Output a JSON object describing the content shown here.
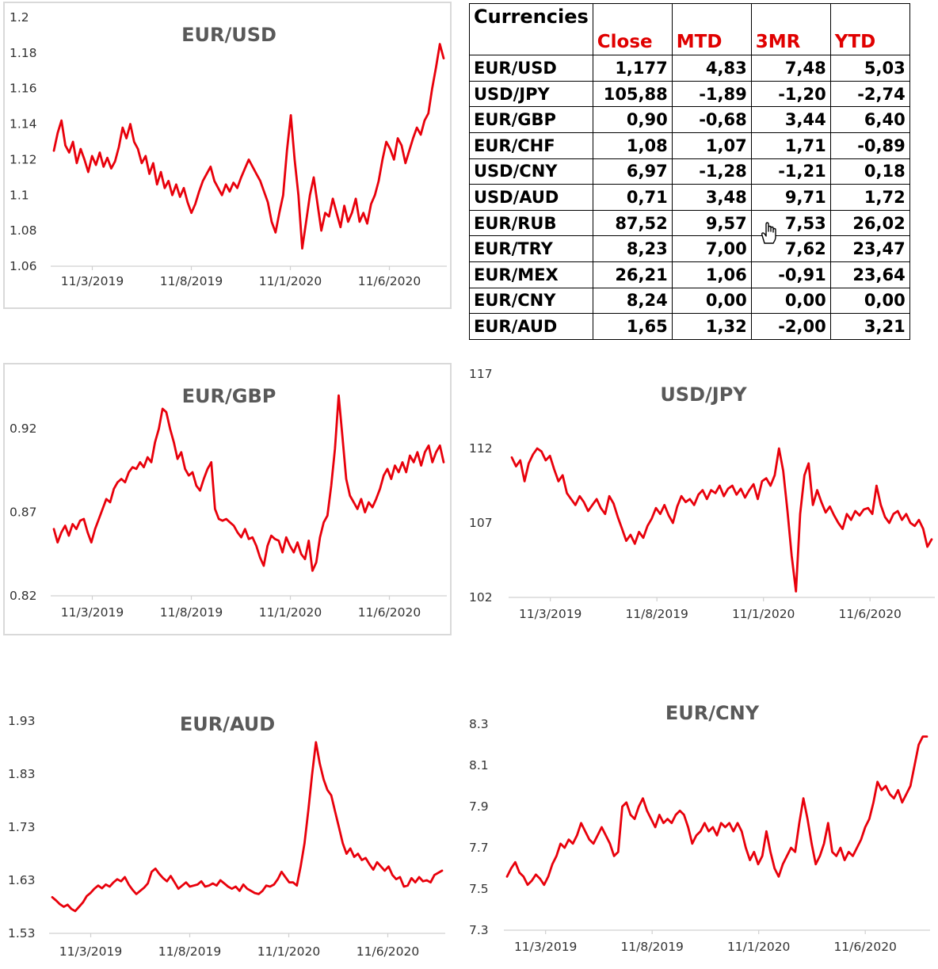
{
  "table": {
    "title": "Currencies",
    "headers": [
      "Close",
      "MTD",
      "3MR",
      "YTD"
    ],
    "rows": [
      {
        "pair": "EUR/USD",
        "close": "1,177",
        "mtd": "4,83",
        "m3r": "7,48",
        "ytd": "5,03"
      },
      {
        "pair": "USD/JPY",
        "close": "105,88",
        "mtd": "-1,89",
        "m3r": "-1,20",
        "ytd": "-2,74"
      },
      {
        "pair": "EUR/GBP",
        "close": "0,90",
        "mtd": "-0,68",
        "m3r": "3,44",
        "ytd": "6,40"
      },
      {
        "pair": "EUR/CHF",
        "close": "1,08",
        "mtd": "1,07",
        "m3r": "1,71",
        "ytd": "-0,89"
      },
      {
        "pair": "USD/CNY",
        "close": "6,97",
        "mtd": "-1,28",
        "m3r": "-1,21",
        "ytd": "0,18"
      },
      {
        "pair": "USD/AUD",
        "close": "0,71",
        "mtd": "3,48",
        "m3r": "9,71",
        "ytd": "1,72"
      },
      {
        "pair": "EUR/RUB",
        "close": "87,52",
        "mtd": "9,57",
        "m3r": "7,53",
        "ytd": "26,02"
      },
      {
        "pair": "EUR/TRY",
        "close": "8,23",
        "mtd": "7,00",
        "m3r": "7,62",
        "ytd": "23,47"
      },
      {
        "pair": "EUR/MEX",
        "close": "26,21",
        "mtd": "1,06",
        "m3r": "-0,91",
        "ytd": "23,64"
      },
      {
        "pair": "EUR/CNY",
        "close": "8,24",
        "mtd": "0,00",
        "m3r": "0,00",
        "ytd": "0,00"
      },
      {
        "pair": "EUR/AUD",
        "close": "1,65",
        "mtd": "1,32",
        "m3r": "-2,00",
        "ytd": "3,21"
      }
    ]
  },
  "colors": {
    "series": "#e8000b",
    "header_text": "#e00000",
    "title_text": "#595959"
  },
  "cursor_icon": "hand-pointer-icon",
  "chart_data": [
    {
      "id": "eurusd",
      "type": "line",
      "title": "EUR/USD",
      "x_ticks": [
        "11/3/2019",
        "11/8/2019",
        "11/1/2020",
        "11/6/2020"
      ],
      "y_ticks": [
        "1.2",
        "1.18",
        "1.16",
        "1.14",
        "1.12",
        "1.1",
        "1.08",
        "1.06"
      ],
      "ylim": [
        1.06,
        1.2
      ],
      "series": [
        {
          "values": [
            1.125,
            1.135,
            1.142,
            1.128,
            1.124,
            1.13,
            1.118,
            1.126,
            1.12,
            1.113,
            1.122,
            1.117,
            1.124,
            1.116,
            1.121,
            1.115,
            1.119,
            1.127,
            1.138,
            1.132,
            1.14,
            1.13,
            1.126,
            1.118,
            1.122,
            1.112,
            1.118,
            1.106,
            1.113,
            1.104,
            1.108,
            1.1,
            1.106,
            1.099,
            1.104,
            1.096,
            1.09,
            1.095,
            1.102,
            1.108,
            1.112,
            1.116,
            1.108,
            1.104,
            1.1,
            1.106,
            1.102,
            1.107,
            1.104,
            1.11,
            1.115,
            1.12,
            1.116,
            1.112,
            1.108,
            1.102,
            1.096,
            1.085,
            1.079,
            1.09,
            1.1,
            1.125,
            1.145,
            1.12,
            1.1,
            1.07,
            1.085,
            1.1,
            1.11,
            1.095,
            1.08,
            1.09,
            1.088,
            1.098,
            1.09,
            1.082,
            1.094,
            1.085,
            1.09,
            1.098,
            1.085,
            1.09,
            1.084,
            1.095,
            1.1,
            1.108,
            1.12,
            1.13,
            1.126,
            1.12,
            1.132,
            1.128,
            1.118,
            1.125,
            1.132,
            1.138,
            1.134,
            1.142,
            1.146,
            1.16,
            1.172,
            1.185,
            1.177
          ]
        }
      ]
    },
    {
      "id": "eurgbp",
      "type": "line",
      "title": "EUR/GBP",
      "x_ticks": [
        "11/3/2019",
        "11/8/2019",
        "11/1/2020",
        "11/6/2020"
      ],
      "y_ticks": [
        "0.92",
        "0.87",
        "0.82"
      ],
      "ylim": [
        0.82,
        0.95
      ],
      "series": [
        {
          "values": [
            0.86,
            0.852,
            0.858,
            0.862,
            0.856,
            0.863,
            0.86,
            0.865,
            0.866,
            0.858,
            0.852,
            0.86,
            0.866,
            0.872,
            0.878,
            0.876,
            0.884,
            0.888,
            0.89,
            0.888,
            0.894,
            0.897,
            0.896,
            0.9,
            0.897,
            0.903,
            0.9,
            0.912,
            0.92,
            0.932,
            0.93,
            0.92,
            0.912,
            0.902,
            0.906,
            0.896,
            0.892,
            0.894,
            0.886,
            0.883,
            0.89,
            0.896,
            0.9,
            0.872,
            0.866,
            0.865,
            0.866,
            0.864,
            0.862,
            0.858,
            0.855,
            0.86,
            0.854,
            0.855,
            0.85,
            0.843,
            0.838,
            0.85,
            0.856,
            0.854,
            0.853,
            0.846,
            0.855,
            0.85,
            0.846,
            0.852,
            0.845,
            0.842,
            0.853,
            0.835,
            0.84,
            0.855,
            0.864,
            0.868,
            0.886,
            0.908,
            0.94,
            0.915,
            0.89,
            0.88,
            0.876,
            0.872,
            0.878,
            0.87,
            0.876,
            0.873,
            0.878,
            0.884,
            0.892,
            0.896,
            0.89,
            0.898,
            0.894,
            0.9,
            0.894,
            0.904,
            0.9,
            0.906,
            0.898,
            0.906,
            0.91,
            0.9,
            0.906,
            0.91,
            0.9
          ]
        }
      ]
    },
    {
      "id": "usdjpy",
      "type": "line",
      "title": "USD/JPY",
      "x_ticks": [
        "11/3/2019",
        "11/8/2019",
        "11/1/2020",
        "11/6/2020"
      ],
      "y_ticks": [
        "117",
        "112",
        "107",
        "102"
      ],
      "ylim": [
        102,
        117
      ],
      "series": [
        {
          "values": [
            111.4,
            110.8,
            111.2,
            109.8,
            111.0,
            111.6,
            112.0,
            111.8,
            111.2,
            111.5,
            110.6,
            109.8,
            110.2,
            109.0,
            108.6,
            108.2,
            108.8,
            108.4,
            107.8,
            108.2,
            108.6,
            108.0,
            107.6,
            108.8,
            108.3,
            107.4,
            106.6,
            105.8,
            106.2,
            105.6,
            106.4,
            106.0,
            106.8,
            107.3,
            108.0,
            107.6,
            108.2,
            107.5,
            107.0,
            108.1,
            108.8,
            108.4,
            108.6,
            108.2,
            108.9,
            109.2,
            108.6,
            109.2,
            109.0,
            109.5,
            108.8,
            109.3,
            109.5,
            108.9,
            109.3,
            108.7,
            109.2,
            109.6,
            108.6,
            109.8,
            110.0,
            109.5,
            110.2,
            112.0,
            110.5,
            107.8,
            104.8,
            102.4,
            107.6,
            110.2,
            111.0,
            108.2,
            109.2,
            108.4,
            107.7,
            108.1,
            107.5,
            107.0,
            106.6,
            107.6,
            107.2,
            107.8,
            107.5,
            107.9,
            108.0,
            107.6,
            109.5,
            108.2,
            107.4,
            107.0,
            107.6,
            107.8,
            107.2,
            107.6,
            107.0,
            106.8,
            107.2,
            106.6,
            105.4,
            105.9
          ]
        }
      ]
    },
    {
      "id": "euraud",
      "type": "line",
      "title": "EUR/AUD",
      "x_ticks": [
        "11/3/2019",
        "11/8/2019",
        "11/1/2020",
        "11/6/2020"
      ],
      "y_ticks": [
        "1.93",
        "1.83",
        "1.73",
        "1.63",
        "1.53"
      ],
      "ylim": [
        1.53,
        1.93
      ],
      "series": [
        {
          "values": [
            1.598,
            1.592,
            1.585,
            1.58,
            1.584,
            1.576,
            1.572,
            1.58,
            1.588,
            1.6,
            1.606,
            1.614,
            1.62,
            1.615,
            1.622,
            1.618,
            1.626,
            1.632,
            1.628,
            1.636,
            1.622,
            1.612,
            1.604,
            1.61,
            1.616,
            1.624,
            1.646,
            1.652,
            1.642,
            1.634,
            1.628,
            1.638,
            1.626,
            1.614,
            1.62,
            1.626,
            1.618,
            1.62,
            1.622,
            1.628,
            1.618,
            1.62,
            1.624,
            1.62,
            1.63,
            1.624,
            1.618,
            1.614,
            1.618,
            1.61,
            1.622,
            1.614,
            1.61,
            1.606,
            1.604,
            1.61,
            1.62,
            1.618,
            1.622,
            1.632,
            1.646,
            1.636,
            1.626,
            1.626,
            1.62,
            1.656,
            1.7,
            1.762,
            1.83,
            1.89,
            1.85,
            1.82,
            1.8,
            1.79,
            1.76,
            1.73,
            1.7,
            1.68,
            1.69,
            1.674,
            1.68,
            1.668,
            1.672,
            1.66,
            1.65,
            1.664,
            1.656,
            1.648,
            1.656,
            1.64,
            1.632,
            1.636,
            1.618,
            1.62,
            1.634,
            1.626,
            1.636,
            1.628,
            1.63,
            1.626,
            1.64,
            1.644,
            1.648
          ]
        }
      ]
    },
    {
      "id": "eurcny",
      "type": "line",
      "title": "EUR/CNY",
      "x_ticks": [
        "11/3/2019",
        "11/8/2019",
        "11/1/2020",
        "11/6/2020"
      ],
      "y_ticks": [
        "8.3",
        "8.1",
        "7.9",
        "7.7",
        "7.5",
        "7.3"
      ],
      "ylim": [
        7.3,
        8.3
      ],
      "series": [
        {
          "values": [
            7.56,
            7.6,
            7.63,
            7.58,
            7.56,
            7.52,
            7.54,
            7.57,
            7.55,
            7.52,
            7.56,
            7.62,
            7.66,
            7.72,
            7.7,
            7.74,
            7.72,
            7.76,
            7.82,
            7.78,
            7.74,
            7.72,
            7.76,
            7.8,
            7.76,
            7.72,
            7.66,
            7.68,
            7.9,
            7.92,
            7.86,
            7.84,
            7.9,
            7.94,
            7.88,
            7.84,
            7.8,
            7.86,
            7.82,
            7.84,
            7.82,
            7.86,
            7.88,
            7.86,
            7.8,
            7.72,
            7.76,
            7.78,
            7.82,
            7.78,
            7.8,
            7.76,
            7.82,
            7.8,
            7.82,
            7.78,
            7.82,
            7.78,
            7.7,
            7.64,
            7.68,
            7.62,
            7.66,
            7.78,
            7.68,
            7.6,
            7.56,
            7.62,
            7.66,
            7.7,
            7.68,
            7.82,
            7.94,
            7.84,
            7.72,
            7.62,
            7.66,
            7.72,
            7.82,
            7.68,
            7.66,
            7.7,
            7.64,
            7.68,
            7.66,
            7.7,
            7.74,
            7.8,
            7.84,
            7.92,
            8.02,
            7.98,
            8.0,
            7.96,
            7.94,
            7.98,
            7.92,
            7.96,
            8.0,
            8.1,
            8.2,
            8.24,
            8.24
          ]
        }
      ]
    }
  ]
}
